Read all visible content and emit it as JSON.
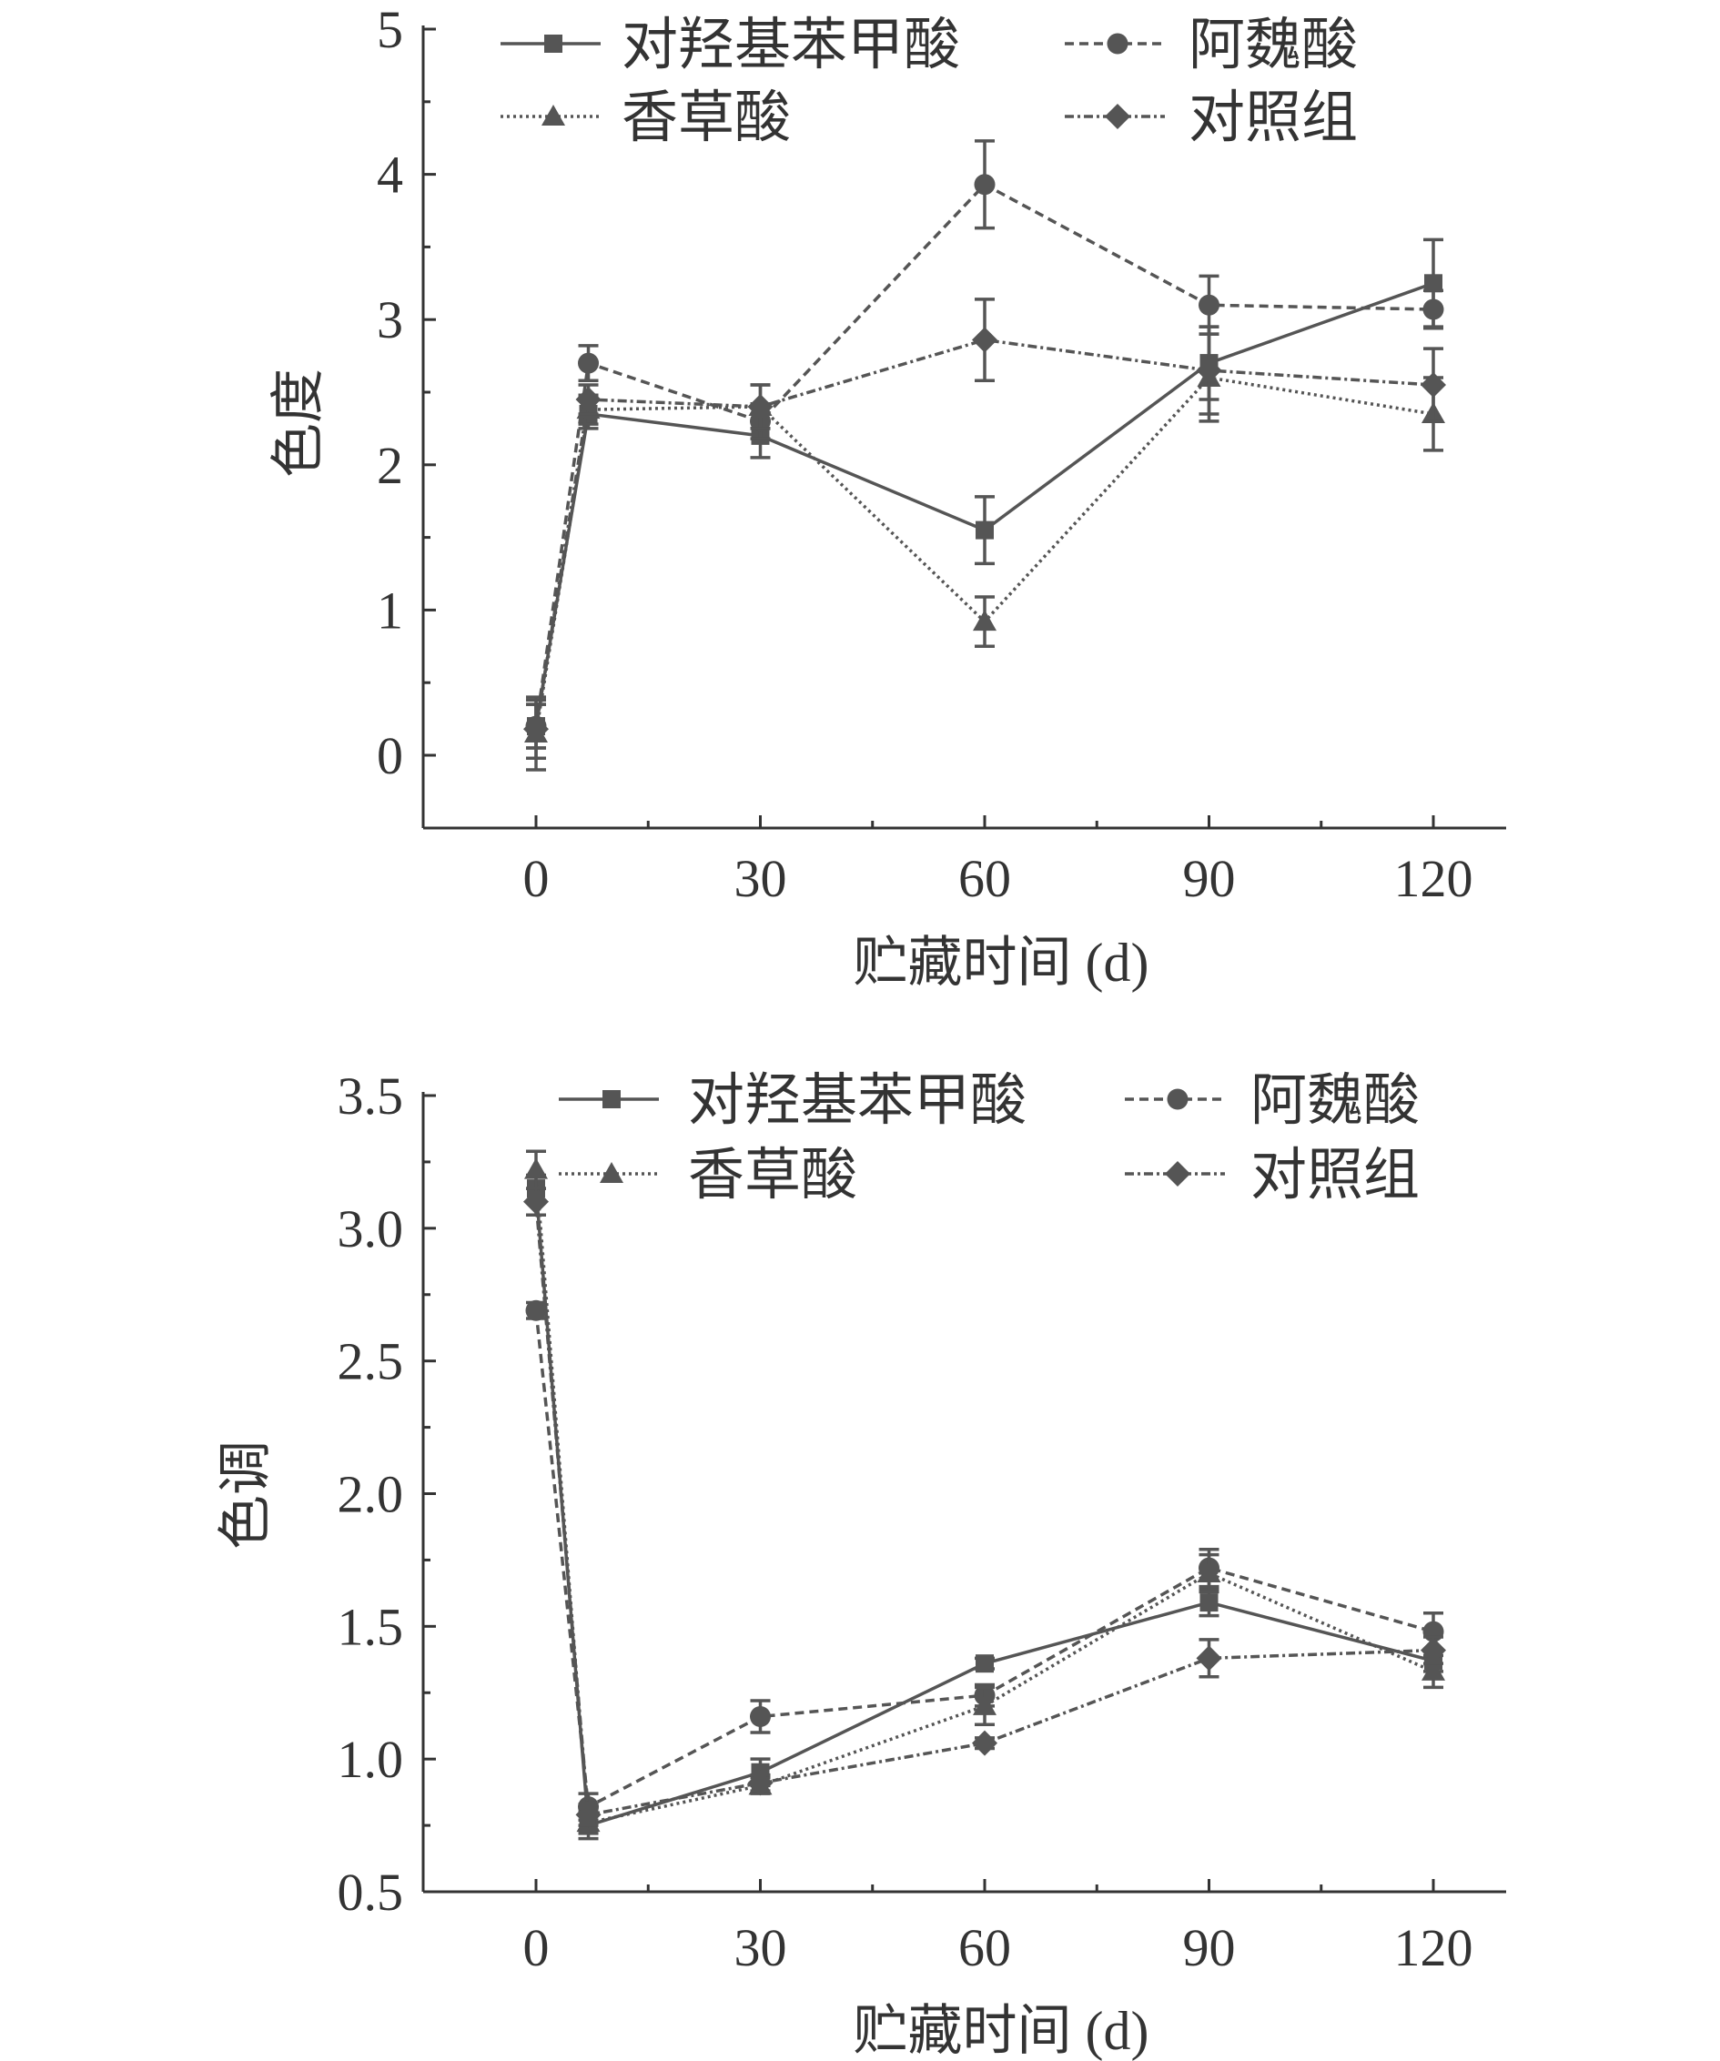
{
  "colors": {
    "ink": "#555555",
    "text": "#333333"
  },
  "chart_data": [
    {
      "type": "line",
      "title": "",
      "xlabel": "贮藏时间 (d)",
      "ylabel": "色度",
      "xlim": [
        -15,
        135
      ],
      "ylim": [
        -0.5,
        5
      ],
      "xticks": [
        0,
        30,
        60,
        90,
        120
      ],
      "xtick_labels": [
        "0",
        "30",
        "60",
        "90",
        "120"
      ],
      "yticks": [
        0,
        1,
        2,
        3,
        4,
        5
      ],
      "ytick_labels": [
        "0",
        "1",
        "2",
        "3",
        "4",
        "5"
      ],
      "legend_position": "top",
      "x": [
        0,
        7,
        30,
        60,
        90,
        120
      ],
      "series": [
        {
          "name": "对羟基苯甲酸",
          "marker": "square",
          "dash": "solid",
          "values": [
            0.2,
            2.35,
            2.2,
            1.55,
            2.7,
            3.25
          ],
          "errors": [
            0.15,
            0.1,
            0.15,
            0.23,
            0.25,
            0.3
          ]
        },
        {
          "name": "阿魏酸",
          "marker": "circle",
          "dash": "dashed",
          "values": [
            0.2,
            2.7,
            2.3,
            3.93,
            3.1,
            3.07
          ],
          "errors": [
            0.15,
            0.12,
            0.12,
            0.3,
            0.2,
            0.13
          ]
        },
        {
          "name": "香草酸",
          "marker": "triangle",
          "dash": "dotted",
          "values": [
            0.15,
            2.38,
            2.4,
            0.92,
            2.6,
            2.35
          ],
          "errors": [
            0.25,
            0.1,
            0.15,
            0.17,
            0.3,
            0.25
          ]
        },
        {
          "name": "对照组",
          "marker": "diamond",
          "dash": "dashdot",
          "values": [
            0.18,
            2.45,
            2.4,
            2.86,
            2.65,
            2.55
          ],
          "errors": [
            0.2,
            0.1,
            0.15,
            0.28,
            0.3,
            0.25
          ]
        }
      ]
    },
    {
      "type": "line",
      "title": "",
      "xlabel": "贮藏时间 (d)",
      "ylabel": "色调",
      "xlim": [
        -15,
        135
      ],
      "ylim": [
        0.5,
        3.5
      ],
      "xticks": [
        0,
        30,
        60,
        90,
        120
      ],
      "xtick_labels": [
        "0",
        "30",
        "60",
        "90",
        "120"
      ],
      "yticks": [
        0.5,
        1.0,
        1.5,
        2.0,
        2.5,
        3.0,
        3.5
      ],
      "ytick_labels": [
        "0.5",
        "1.0",
        "1.5",
        "2.0",
        "2.5",
        "3.0",
        "3.5"
      ],
      "legend_position": "top",
      "x": [
        0,
        7,
        30,
        60,
        90,
        120
      ],
      "series": [
        {
          "name": "对羟基苯甲酸",
          "marker": "square",
          "dash": "solid",
          "values": [
            3.15,
            0.75,
            0.95,
            1.36,
            1.59,
            1.37
          ],
          "errors": [
            0.05,
            0.05,
            0.05,
            0.02,
            0.05,
            0.04
          ]
        },
        {
          "name": "阿魏酸",
          "marker": "circle",
          "dash": "dashed",
          "values": [
            2.69,
            0.82,
            1.16,
            1.24,
            1.72,
            1.48
          ],
          "errors": [
            0.03,
            0.05,
            0.06,
            0.04,
            0.07,
            0.07
          ]
        },
        {
          "name": "香草酸",
          "marker": "triangle",
          "dash": "dotted",
          "values": [
            3.22,
            0.76,
            0.9,
            1.2,
            1.7,
            1.33
          ],
          "errors": [
            0.07,
            0.04,
            0.03,
            0.07,
            0.07,
            0.06
          ]
        },
        {
          "name": "对照组",
          "marker": "diamond",
          "dash": "dashdot",
          "values": [
            3.1,
            0.79,
            0.91,
            1.06,
            1.38,
            1.41
          ],
          "errors": [
            0.05,
            0.04,
            0.03,
            0.02,
            0.07,
            0.05
          ]
        }
      ]
    }
  ]
}
